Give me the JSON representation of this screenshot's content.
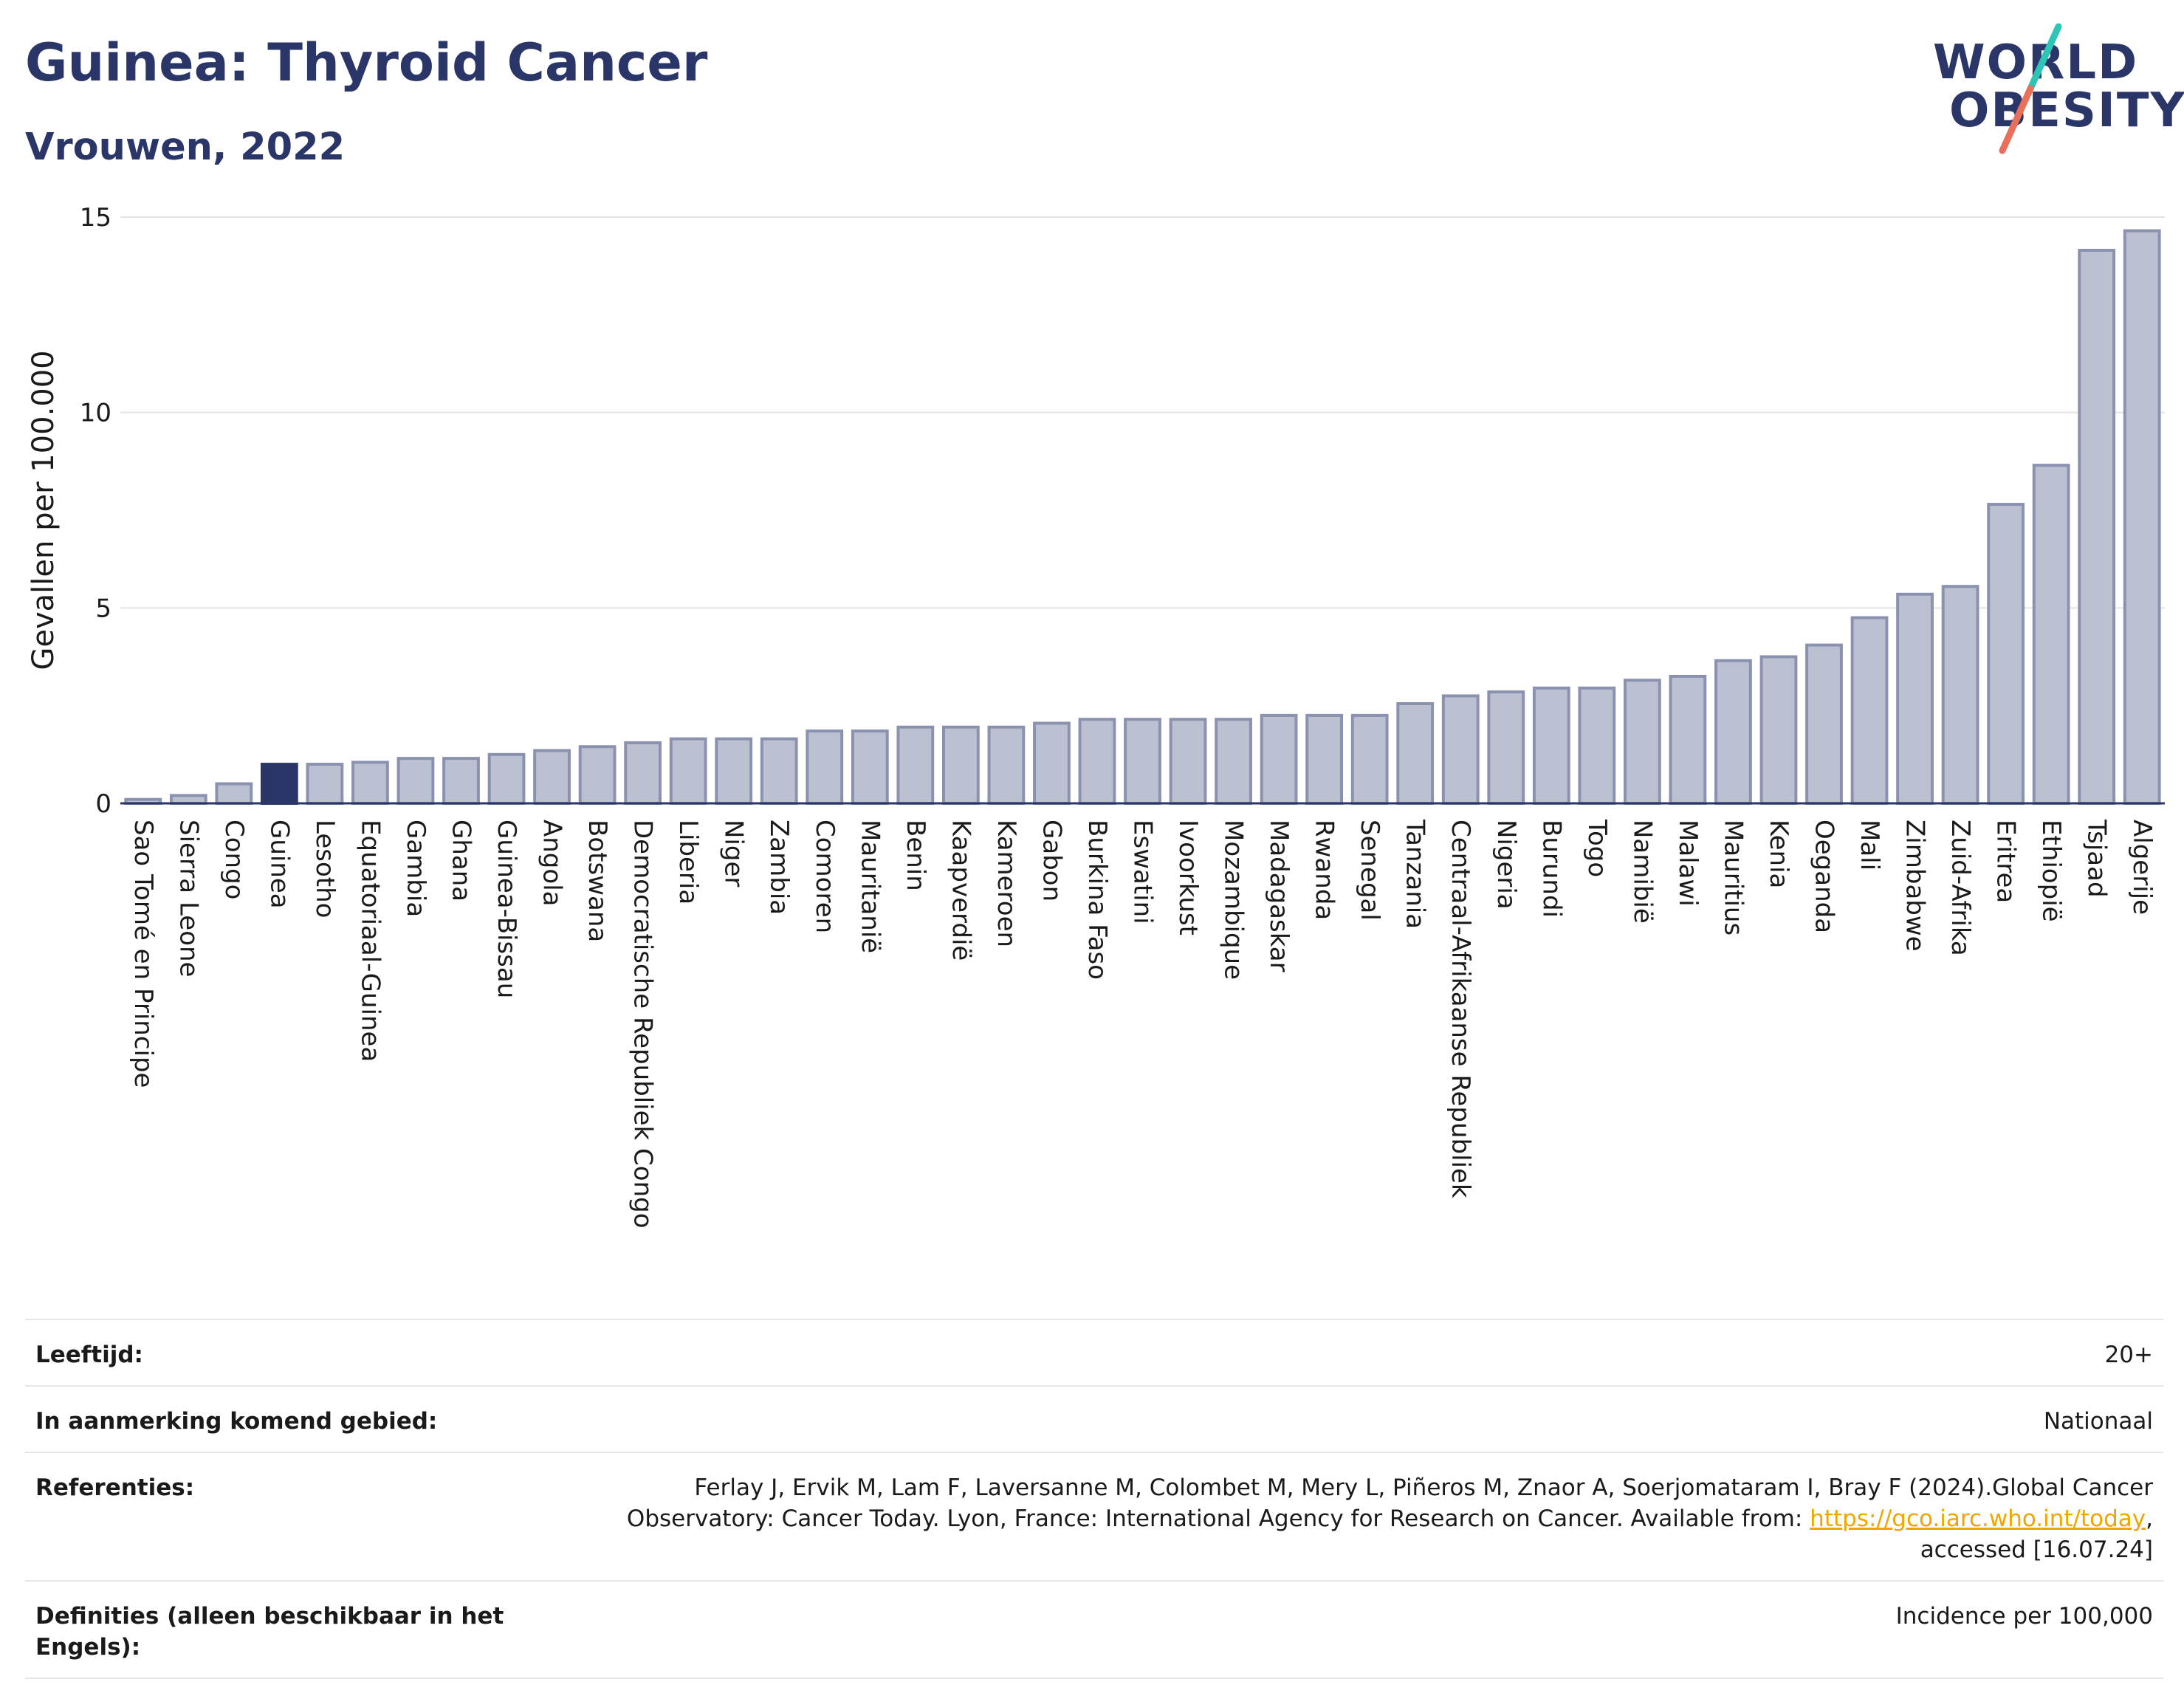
{
  "header": {
    "title": "Guinea: Thyroid Cancer",
    "subtitle": "Vrouwen, 2022"
  },
  "logo": {
    "line1": "WORLD",
    "line2": "OBESITY",
    "accent_colors": [
      "#2ec4b6",
      "#e8705a"
    ]
  },
  "colors": {
    "title": "#2b3668",
    "bar": "#bcc1d1",
    "bar_stroke": "#8a92b0",
    "highlight": "#2b3668",
    "axis": "#2b3668",
    "grid": "#e3e3e3",
    "link": "#f0a500"
  },
  "chart_data": {
    "type": "bar",
    "title": "Guinea: Thyroid Cancer",
    "subtitle": "Vrouwen, 2022",
    "xlabel": "",
    "ylabel": "Gevallen per 100.000",
    "ylim": [
      0,
      15
    ],
    "yticks": [
      0,
      5,
      10,
      15
    ],
    "grid": true,
    "highlight": "Guinea",
    "categories": [
      "Sao Tomé en Principe",
      "Sierra Leone",
      "Congo",
      "Guinea",
      "Lesotho",
      "Equatoriaal-Guinea",
      "Gambia",
      "Ghana",
      "Guinea-Bissau",
      "Angola",
      "Botswana",
      "Democratische Republiek Congo",
      "Liberia",
      "Niger",
      "Zambia",
      "Comoren",
      "Mauritanië",
      "Benin",
      "Kaapverdië",
      "Kameroen",
      "Gabon",
      "Burkina Faso",
      "Eswatini",
      "Ivoorkust",
      "Mozambique",
      "Madagaskar",
      "Rwanda",
      "Senegal",
      "Tanzania",
      "Centraal-Afrikaanse Republiek",
      "Nigeria",
      "Burundi",
      "Togo",
      "Namibië",
      "Malawi",
      "Mauritius",
      "Kenia",
      "Oeganda",
      "Mali",
      "Zimbabwe",
      "Zuid-Afrika",
      "Eritrea",
      "Ethiopië",
      "Tsjaad",
      "Algerije"
    ],
    "values": [
      0.1,
      0.2,
      0.5,
      1.0,
      1.0,
      1.05,
      1.15,
      1.15,
      1.25,
      1.35,
      1.45,
      1.55,
      1.65,
      1.65,
      1.65,
      1.85,
      1.85,
      1.95,
      1.95,
      1.95,
      2.05,
      2.15,
      2.15,
      2.15,
      2.15,
      2.25,
      2.25,
      2.25,
      2.55,
      2.75,
      2.85,
      2.95,
      2.95,
      3.15,
      3.25,
      3.65,
      3.75,
      4.05,
      4.75,
      5.35,
      5.55,
      7.65,
      8.65,
      14.15,
      14.65
    ]
  },
  "info": {
    "age_label": "Leeftijd:",
    "age_value": "20+",
    "area_label": "In aanmerking komend gebied:",
    "area_value": "Nationaal",
    "ref_label": "Referenties:",
    "ref_line1": "Ferlay J, Ervik M, Lam F, Laversanne M, Colombet M, Mery L, Piñeros M, Znaor A, Soerjomataram I, Bray F (2024).Global Cancer",
    "ref_line2": "Observatory: Cancer Today. Lyon, France: International Agency for Research on Cancer. Available from: ",
    "ref_link": "https://gco.iarc.who.int/today",
    "ref_line2_end": ",",
    "ref_line3": "accessed [16.07.24]",
    "def_label": "Definities (alleen beschikbaar in het Engels):",
    "def_value": "Incidence per 100,000"
  }
}
